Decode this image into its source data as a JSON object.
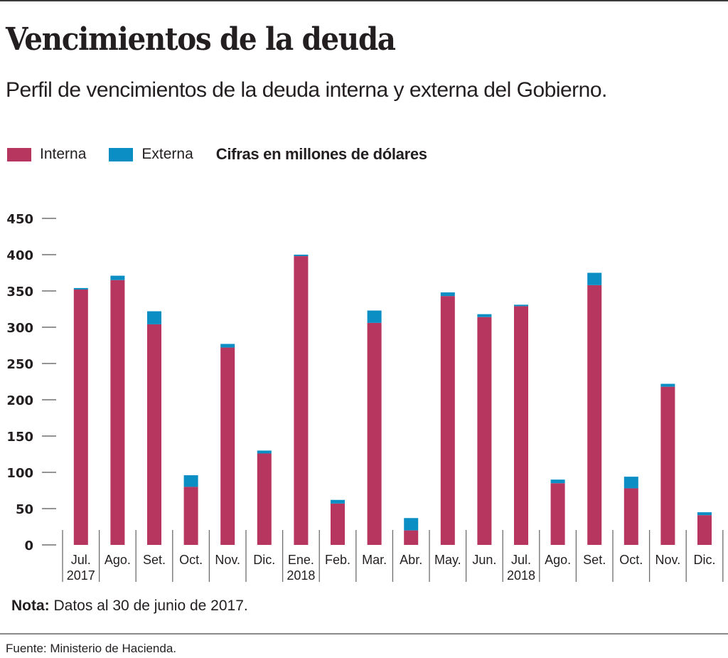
{
  "header": {
    "title": "Vencimientos de la deuda",
    "subtitle": "Perfil de vencimientos  de la deuda interna  y externa del Gobierno."
  },
  "legend": {
    "items": [
      {
        "label": "Interna",
        "color": "#b7365f"
      },
      {
        "label": "Externa",
        "color": "#0b8ec4"
      }
    ],
    "units_note": "Cifras en millones de dólares"
  },
  "footer": {
    "note_label": "Nota:",
    "note_text": " Datos al 30 de junio de 2017.",
    "source": "Fuente: Ministerio de Hacienda."
  },
  "chart_data": {
    "type": "bar",
    "stacked": true,
    "title": "Vencimientos de la deuda",
    "subtitle": "Perfil de vencimientos de la deuda interna y externa del Gobierno.",
    "xlabel": "",
    "ylabel": "Cifras en millones de dólares",
    "ylim": [
      0,
      450
    ],
    "yticks": [
      0,
      50,
      100,
      150,
      200,
      250,
      300,
      350,
      400,
      450
    ],
    "grid": false,
    "legend_position": "top-left",
    "categories": [
      {
        "month": "Jul.",
        "year": "2017"
      },
      {
        "month": "Ago.",
        "year": ""
      },
      {
        "month": "Set.",
        "year": ""
      },
      {
        "month": "Oct.",
        "year": ""
      },
      {
        "month": "Nov.",
        "year": ""
      },
      {
        "month": "Dic.",
        "year": ""
      },
      {
        "month": "Ene.",
        "year": "2018"
      },
      {
        "month": "Feb.",
        "year": ""
      },
      {
        "month": "Mar.",
        "year": ""
      },
      {
        "month": "Abr.",
        "year": ""
      },
      {
        "month": "May.",
        "year": ""
      },
      {
        "month": "Jun.",
        "year": ""
      },
      {
        "month": "Jul.",
        "year": "2018"
      },
      {
        "month": "Ago.",
        "year": ""
      },
      {
        "month": "Set.",
        "year": ""
      },
      {
        "month": "Oct.",
        "year": ""
      },
      {
        "month": "Nov.",
        "year": ""
      },
      {
        "month": "Dic.",
        "year": ""
      }
    ],
    "series": [
      {
        "name": "Interna",
        "color": "#b7365f",
        "values": [
          352,
          365,
          304,
          80,
          272,
          126,
          398,
          57,
          306,
          20,
          343,
          314,
          329,
          85,
          358,
          78,
          218,
          41
        ]
      },
      {
        "name": "Externa",
        "color": "#0b8ec4",
        "values": [
          2,
          6,
          18,
          16,
          5,
          4,
          2,
          5,
          17,
          17,
          5,
          4,
          2,
          5,
          17,
          16,
          4,
          4
        ]
      }
    ]
  }
}
